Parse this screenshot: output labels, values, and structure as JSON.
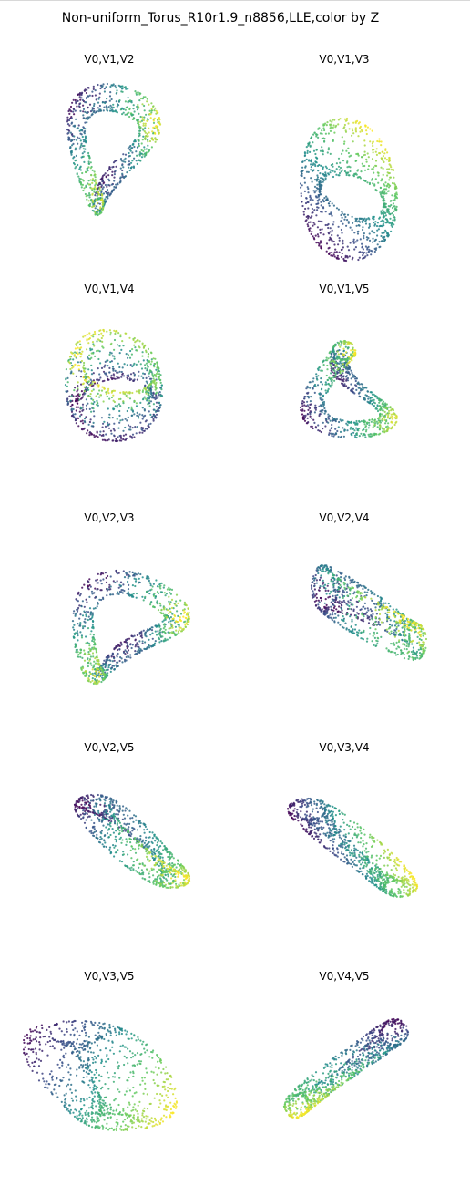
{
  "title": "Non-uniform_Torus_R10r1.9_n8856,LLE,color by Z",
  "colors": {
    "colormap": "viridis",
    "stops": [
      "#440154",
      "#3b528b",
      "#21918c",
      "#5ec962",
      "#fde725"
    ]
  },
  "chart_data": [
    {
      "type": "scatter",
      "title": "V0,V1,V2",
      "color_by": "Z",
      "axes": "off",
      "shape": "figure-eight loop, large left lobe, small right lobe"
    },
    {
      "type": "scatter",
      "title": "V0,V1,V3",
      "color_by": "Z",
      "axes": "off",
      "shape": "V shaped band"
    },
    {
      "type": "scatter",
      "title": "V0,V1,V4",
      "color_by": "Z",
      "axes": "off",
      "shape": "rounded barrel"
    },
    {
      "type": "scatter",
      "title": "V0,V1,V5",
      "color_by": "Z",
      "axes": "off",
      "shape": "twisted bow-tie loop"
    },
    {
      "type": "scatter",
      "title": "V0,V2,V3",
      "color_by": "Z",
      "axes": "off",
      "shape": "figure-eight loop"
    },
    {
      "type": "scatter",
      "title": "V0,V2,V4",
      "color_by": "Z",
      "axes": "off",
      "shape": "saddle shaped torus"
    },
    {
      "type": "scatter",
      "title": "V0,V2,V5",
      "color_by": "Z",
      "axes": "off",
      "shape": "twisted saddle band"
    },
    {
      "type": "scatter",
      "title": "V0,V3,V4",
      "color_by": "Z",
      "axes": "off",
      "shape": "folded sheet"
    },
    {
      "type": "scatter",
      "title": "V0,V3,V5",
      "color_by": "Z",
      "axes": "off",
      "shape": "two crossing wedges"
    },
    {
      "type": "scatter",
      "title": "V0,V4,V5",
      "color_by": "Z",
      "axes": "off",
      "shape": "fan shaped wedge"
    }
  ]
}
